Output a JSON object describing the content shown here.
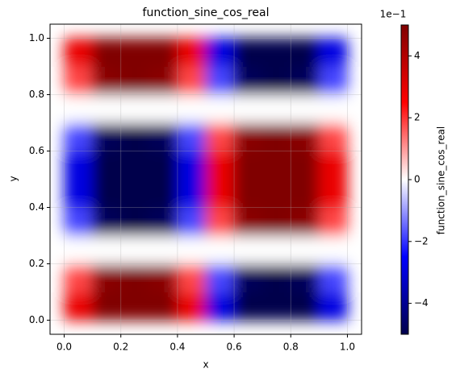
{
  "chart_data": {
    "type": "heatmap",
    "title": "function_sine_cos_real",
    "x_label": "x",
    "y_label": "y",
    "x": [
      0.05,
      0.15,
      0.25,
      0.35,
      0.45,
      0.55,
      0.65,
      0.75,
      0.85,
      0.95
    ],
    "y": [
      0.05,
      0.15,
      0.25,
      0.35,
      0.45,
      0.55,
      0.65,
      0.75,
      0.85,
      0.95
    ],
    "cell_size": 0.1,
    "values": [
      [
        0.29,
        0.77,
        0.95,
        0.77,
        0.29,
        -0.29,
        -0.77,
        -0.95,
        -0.77,
        -0.29
      ],
      [
        0.18,
        0.48,
        0.59,
        0.48,
        0.18,
        -0.18,
        -0.48,
        -0.59,
        -0.48,
        -0.18
      ],
      [
        0,
        0,
        0,
        0,
        0,
        0,
        0,
        0,
        0,
        0
      ],
      [
        -0.18,
        -0.48,
        -0.59,
        -0.48,
        -0.18,
        0.18,
        0.48,
        0.59,
        0.48,
        0.18
      ],
      [
        -0.29,
        -0.77,
        -0.95,
        -0.77,
        -0.29,
        0.29,
        0.77,
        0.95,
        0.77,
        0.29
      ],
      [
        -0.29,
        -0.77,
        -0.95,
        -0.77,
        -0.29,
        0.29,
        0.77,
        0.95,
        0.77,
        0.29
      ],
      [
        -0.18,
        -0.48,
        -0.59,
        -0.48,
        -0.18,
        0.18,
        0.48,
        0.59,
        0.48,
        0.18
      ],
      [
        0,
        0,
        0,
        0,
        0,
        0,
        0,
        0,
        0,
        0
      ],
      [
        0.18,
        0.48,
        0.59,
        0.48,
        0.18,
        -0.18,
        -0.48,
        -0.59,
        -0.48,
        -0.18
      ],
      [
        0.29,
        0.77,
        0.95,
        0.77,
        0.29,
        -0.29,
        -0.77,
        -0.95,
        -0.77,
        -0.29
      ]
    ],
    "xlim": [
      -0.05,
      1.05
    ],
    "ylim": [
      -0.05,
      1.05
    ],
    "xticks": [
      {
        "value": 0,
        "label": "0.0"
      },
      {
        "value": 0.2,
        "label": "0.2"
      },
      {
        "value": 0.4,
        "label": "0.4"
      },
      {
        "value": 0.6,
        "label": "0.6"
      },
      {
        "value": 0.8,
        "label": "0.8"
      },
      {
        "value": 1,
        "label": "1.0"
      }
    ],
    "yticks": [
      {
        "value": 0,
        "label": "0.0"
      },
      {
        "value": 0.2,
        "label": "0.2"
      },
      {
        "value": 0.4,
        "label": "0.4"
      },
      {
        "value": 0.6,
        "label": "0.6"
      },
      {
        "value": 0.8,
        "label": "0.8"
      },
      {
        "value": 1,
        "label": "1.0"
      }
    ],
    "grid": true,
    "colorscale": [
      "#00004c",
      "#0000ff",
      "#ffffff",
      "#ff0000",
      "#800000"
    ],
    "clim": [
      -0.5,
      0.5
    ],
    "colorbar_label": "function_sine_cos_real",
    "colorbar_offset_label": "1e−1",
    "colorbar_ticks": [
      {
        "value": -0.4,
        "label": "−4"
      },
      {
        "value": -0.2,
        "label": "−2"
      },
      {
        "value": 0,
        "label": "0"
      },
      {
        "value": 0.2,
        "label": "2"
      },
      {
        "value": 0.4,
        "label": "4"
      }
    ]
  }
}
